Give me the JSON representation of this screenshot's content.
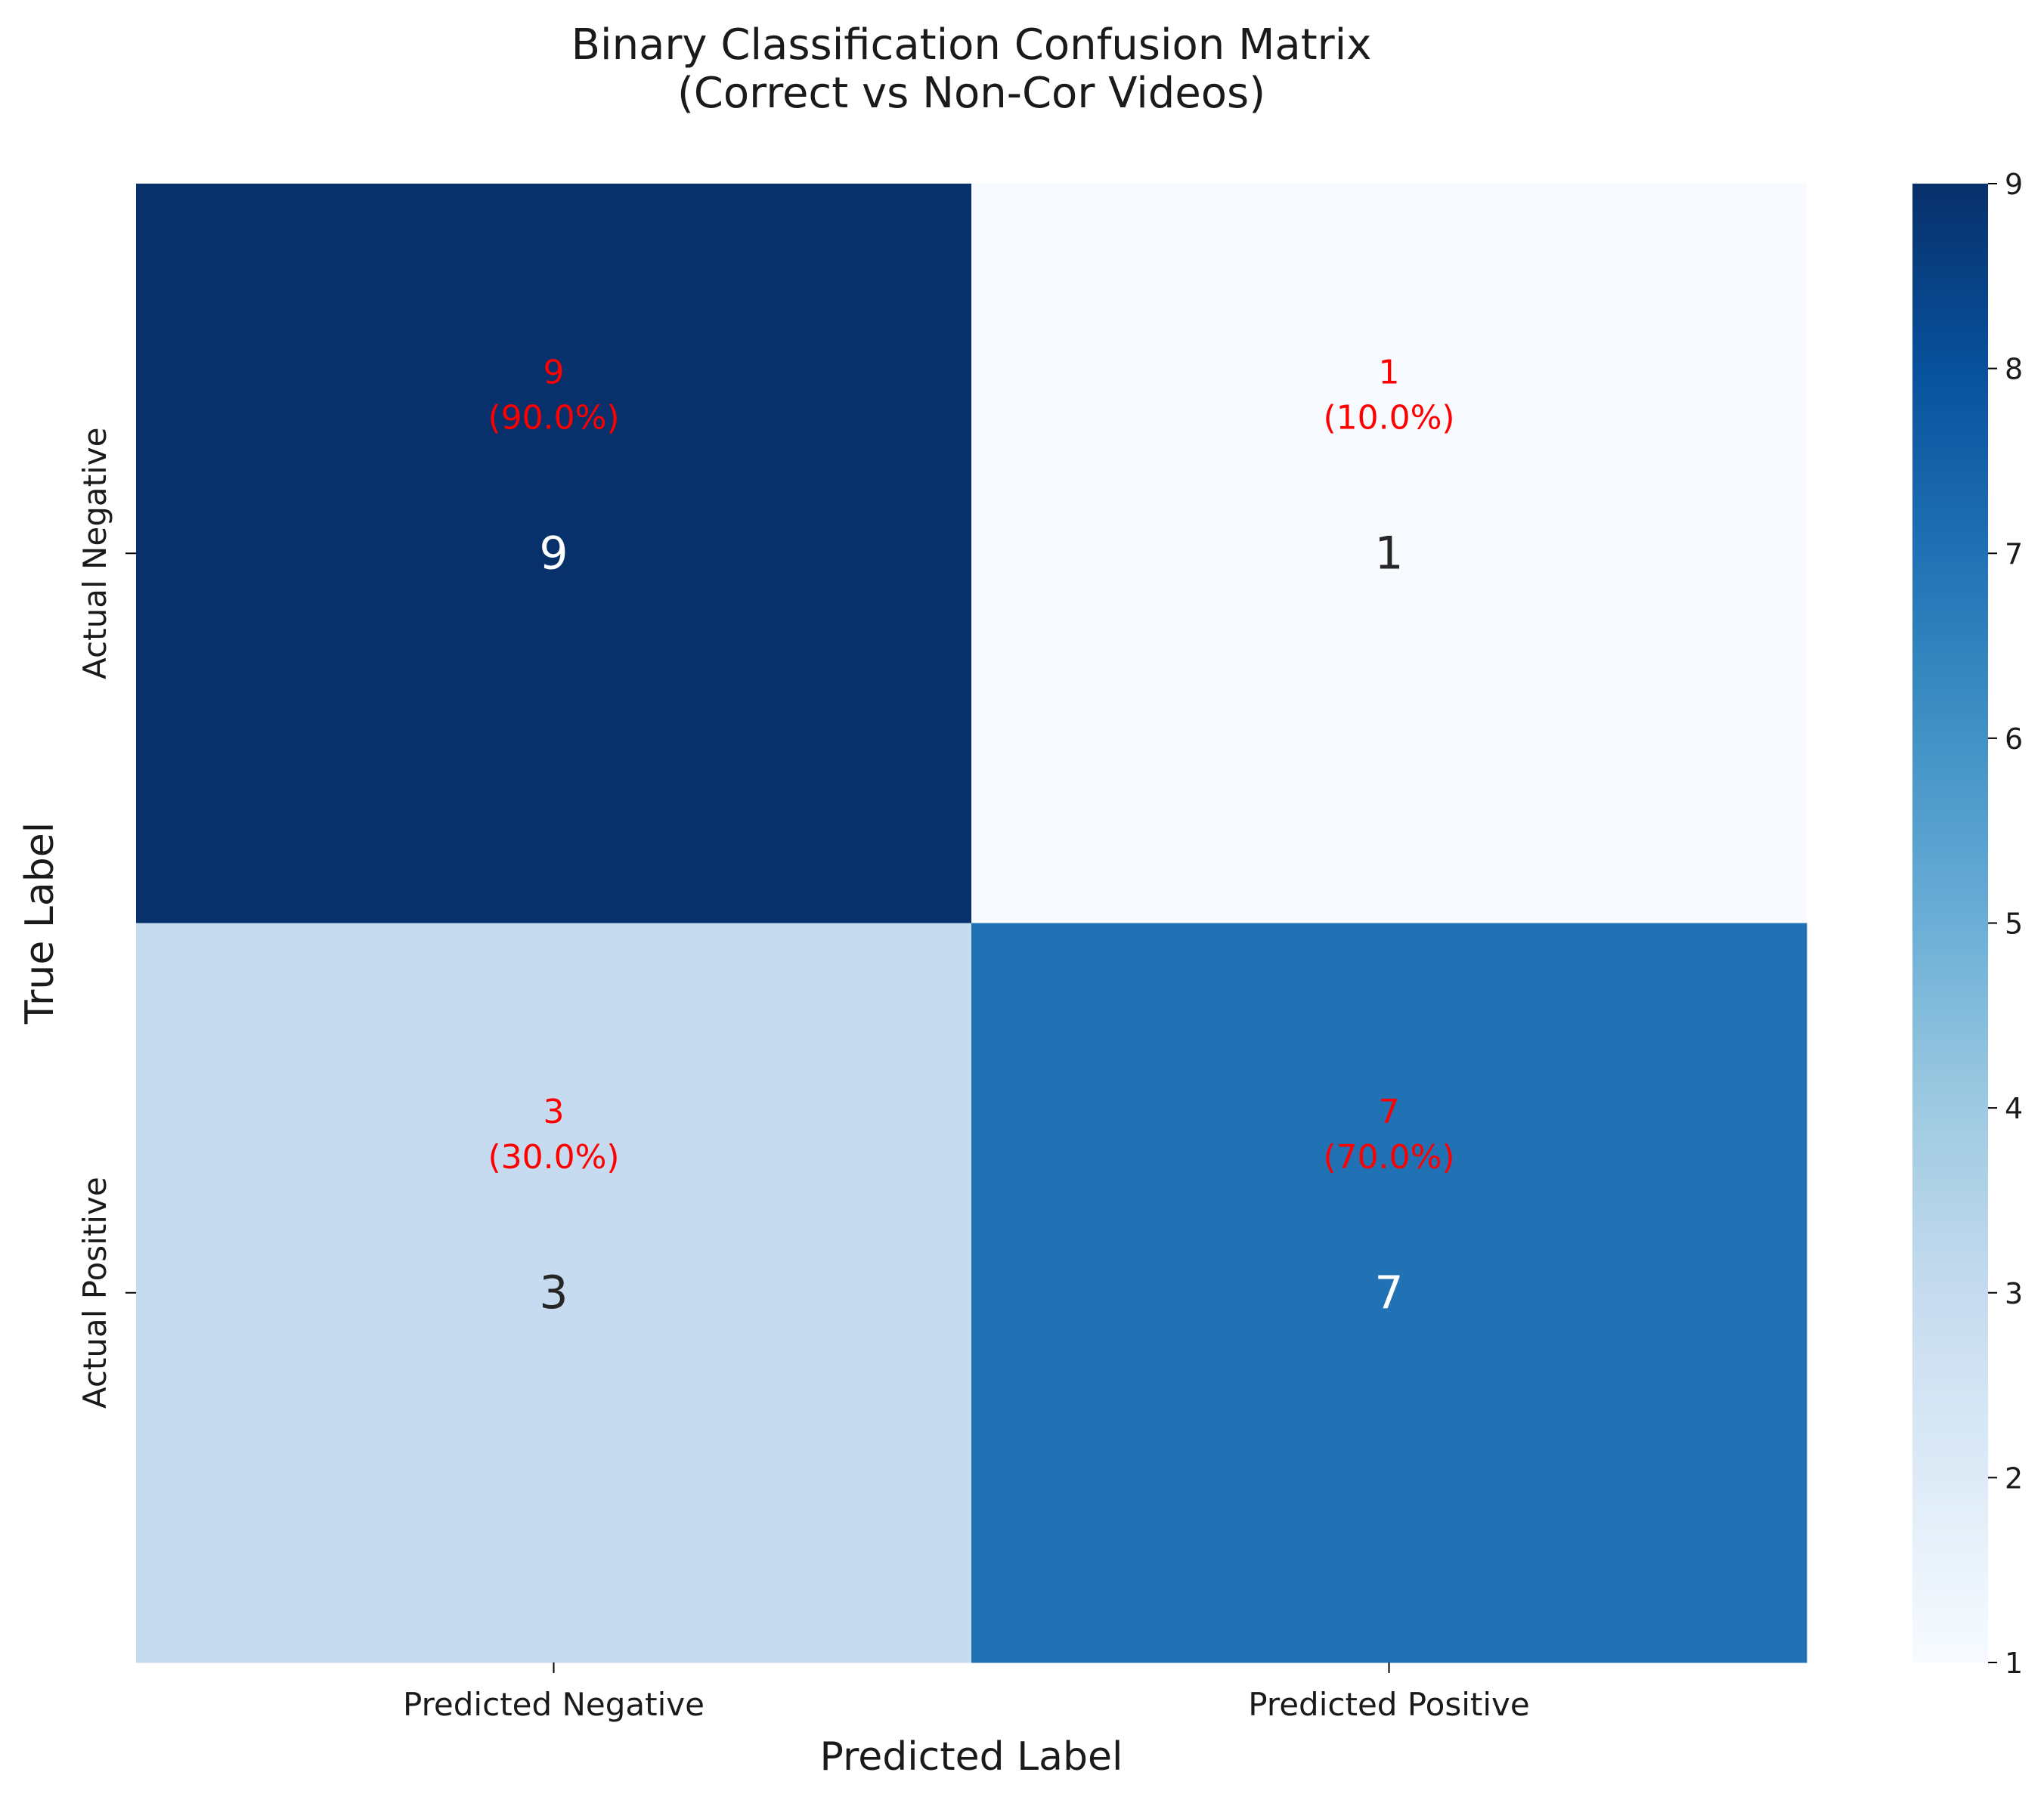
{
  "chart_data": {
    "type": "heatmap",
    "title": "Binary Classification Confusion Matrix\n(Correct vs Non-Cor Videos)",
    "xlabel": "Predicted Label",
    "ylabel": "True Label",
    "x_categories": [
      "Predicted Negative",
      "Predicted Positive"
    ],
    "y_categories": [
      "Actual Negative",
      "Actual Positive"
    ],
    "values": [
      [
        9,
        1
      ],
      [
        3,
        7
      ]
    ],
    "annotations": [
      [
        "9\n(90.0%)",
        "1\n(10.0%)"
      ],
      [
        "3\n(30.0%)",
        "7\n(70.0%)"
      ]
    ],
    "annotation_color": "#ff0000",
    "colormap": "Blues",
    "colorbar_range": [
      1,
      9
    ],
    "colorbar_ticks": [
      "1",
      "2",
      "3",
      "4",
      "5",
      "6",
      "7",
      "8",
      "9"
    ],
    "grid": false,
    "legend": "none"
  }
}
